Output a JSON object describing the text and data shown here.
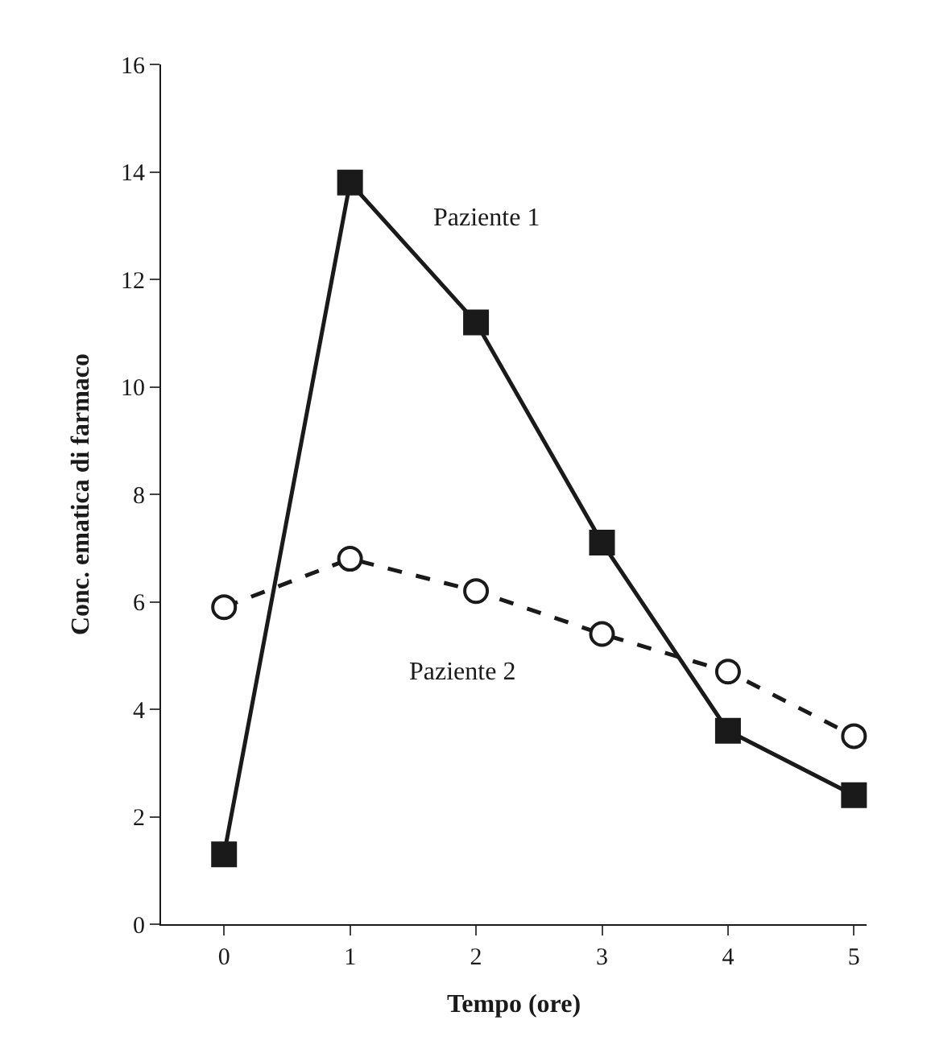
{
  "chart_data": {
    "type": "line",
    "xlabel": "Tempo (ore)",
    "ylabel": "Conc. ematica di farmaco",
    "x": [
      0,
      1,
      2,
      3,
      4,
      5
    ],
    "series": [
      {
        "name": "Paziente 1",
        "color": "#1a1a1a",
        "values": [
          1.3,
          13.8,
          11.2,
          7.1,
          3.6,
          2.4
        ],
        "marker": "square",
        "line_style": "solid"
      },
      {
        "name": "Paziente 2",
        "color": "#1a1a1a",
        "values": [
          5.9,
          6.8,
          6.2,
          5.4,
          4.7,
          3.5
        ],
        "marker": "circle",
        "line_style": "dashed"
      }
    ],
    "xlim": [
      -0.5,
      5.1
    ],
    "xticks": [
      0,
      1,
      2,
      3,
      4,
      5
    ],
    "ylim": [
      0,
      16
    ],
    "yticks": [
      0,
      2,
      4,
      6,
      8,
      10,
      12,
      14,
      16
    ],
    "legend": false
  }
}
